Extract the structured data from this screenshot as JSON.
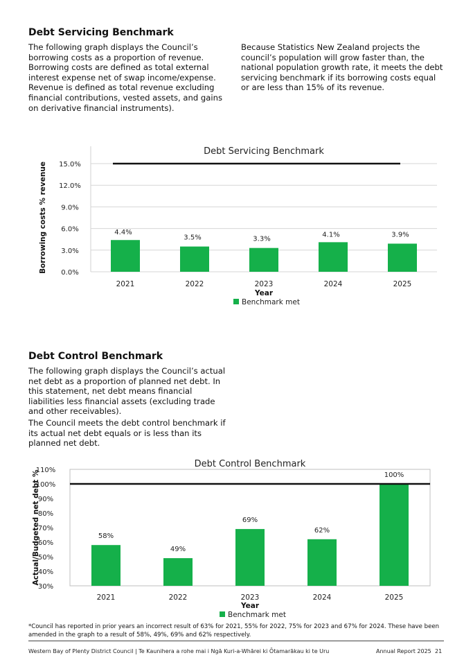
{
  "section1": {
    "heading": "Debt Servicing Benchmark",
    "left_text": "The following graph displays the Council’s borrowing costs as a proportion of revenue. Borrowing costs are defined as total external interest expense net of swap income/expense. Revenue is defined as total revenue excluding financial contributions, vested assets, and gains on derivative financial instruments).",
    "right_text": "Because Statistics New Zealand projects the council’s population will grow faster than, the national population growth rate, it meets the debt servicing benchmark if its borrowing costs equal or are less than 15% of its revenue."
  },
  "section2": {
    "heading": "Debt Control Benchmark",
    "para1": "The following graph displays the Council’s actual net debt as a proportion of planned net debt. In this statement, net debt means financial liabilities less financial assets (excluding trade and other receivables).",
    "para2": "The Council meets the debt control benchmark if its actual net debt equals or is less than its planned net debt."
  },
  "chart_data": [
    {
      "type": "bar",
      "title": "Debt Servicing Benchmark",
      "xlabel": "Year",
      "ylabel": "Borrowing costs % revenue",
      "categories": [
        "2021",
        "2022",
        "2023",
        "2024",
        "2025"
      ],
      "series": [
        {
          "name": "Benchmark met",
          "values": [
            4.4,
            3.5,
            3.3,
            4.1,
            3.9
          ]
        }
      ],
      "data_labels": [
        "4.4%",
        "3.5%",
        "3.3%",
        "4.1%",
        "3.9%"
      ],
      "benchmark": 15,
      "ylim": [
        0,
        15
      ],
      "yticks": [
        "0.0%",
        "3.0%",
        "6.0%",
        "9.0%",
        "12.0%",
        "15.0%"
      ],
      "ytick_values": [
        0,
        3,
        6,
        9,
        12,
        15
      ],
      "grid": true,
      "legend": "bottom",
      "bar_color": "#15b04a",
      "benchmark_color": "#111111"
    },
    {
      "type": "bar",
      "title": "Debt Control Benchmark",
      "xlabel": "Year",
      "ylabel": "Actual/Budgeted net debt %",
      "categories": [
        "2021",
        "2022",
        "2023",
        "2024",
        "2025"
      ],
      "series": [
        {
          "name": "Benchmark met",
          "values": [
            58,
            49,
            69,
            62,
            100
          ]
        }
      ],
      "data_labels": [
        "58%",
        "49%",
        "69%",
        "62%",
        "100%"
      ],
      "benchmark": 100,
      "ylim": [
        30,
        110
      ],
      "yticks": [
        "30%",
        "40%",
        "50%",
        "60%",
        "70%",
        "80%",
        "90%",
        "100%",
        "110%"
      ],
      "ytick_values": [
        30,
        40,
        50,
        60,
        70,
        80,
        90,
        100,
        110
      ],
      "grid": false,
      "legend": "bottom",
      "bar_color": "#15b04a",
      "benchmark_color": "#111111"
    }
  ],
  "footnote": "*Council has reported in prior years an incorrect result of 63% for 2021, 55% for 2022, 75% for 2023 and 67% for 2024. These have been amended in the graph to a result of 58%, 49%, 69% and 62% respectively.",
  "footer": {
    "left": "Western Bay of Plenty District Council | Te Kaunihera a rohe mai i Ngā Kuri-a-Whārei ki Ōtamarākau ki te Uru",
    "right": "Annual Report 2025",
    "page": "21"
  }
}
